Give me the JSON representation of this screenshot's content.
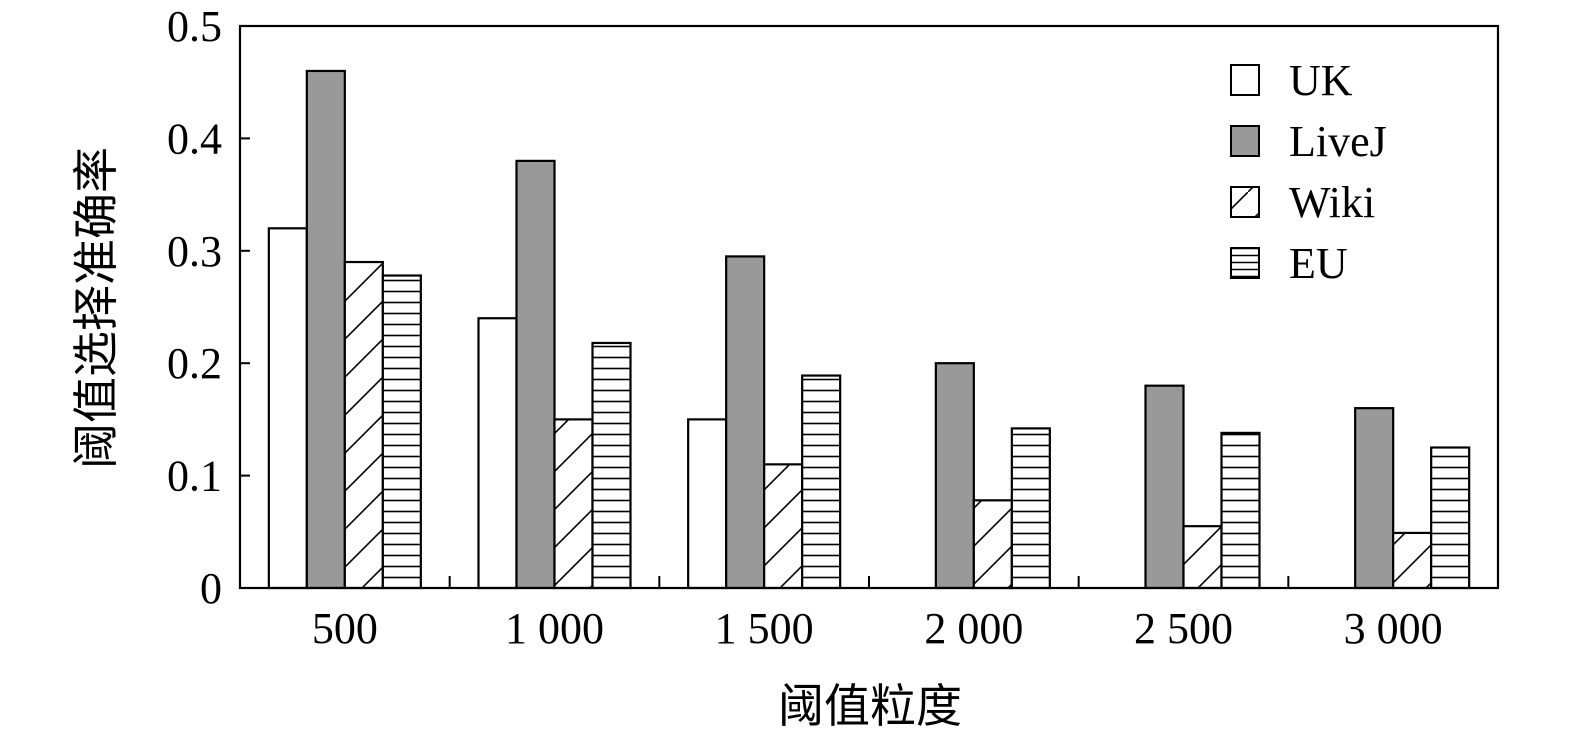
{
  "chart_data": {
    "type": "bar",
    "categories": [
      "500",
      "1 000",
      "1 500",
      "2 000",
      "2 500",
      "3 000"
    ],
    "series": [
      {
        "name": "UK",
        "values": [
          0.32,
          0.24,
          0.15,
          0,
          0,
          0
        ],
        "pattern": "empty",
        "color": "#ffffff"
      },
      {
        "name": "LiveJ",
        "values": [
          0.46,
          0.38,
          0.295,
          0.2,
          0.18,
          0.16
        ],
        "pattern": "solid",
        "color": "#999999"
      },
      {
        "name": "Wiki",
        "values": [
          0.29,
          0.15,
          0.11,
          0.078,
          0.055,
          0.049
        ],
        "pattern": "diagonal",
        "color": "#ffffff"
      },
      {
        "name": "EU",
        "values": [
          0.278,
          0.218,
          0.189,
          0.142,
          0.138,
          0.125
        ],
        "pattern": "horizontal",
        "color": "#ffffff"
      }
    ],
    "xlabel": "阈值粒度",
    "ylabel": "阈值选择准确率",
    "ylim": [
      0,
      0.5
    ],
    "yticks": [
      "0",
      "0.1",
      "0.2",
      "0.3",
      "0.4",
      "0.5"
    ],
    "grid": false,
    "legend_position": "top-right"
  }
}
